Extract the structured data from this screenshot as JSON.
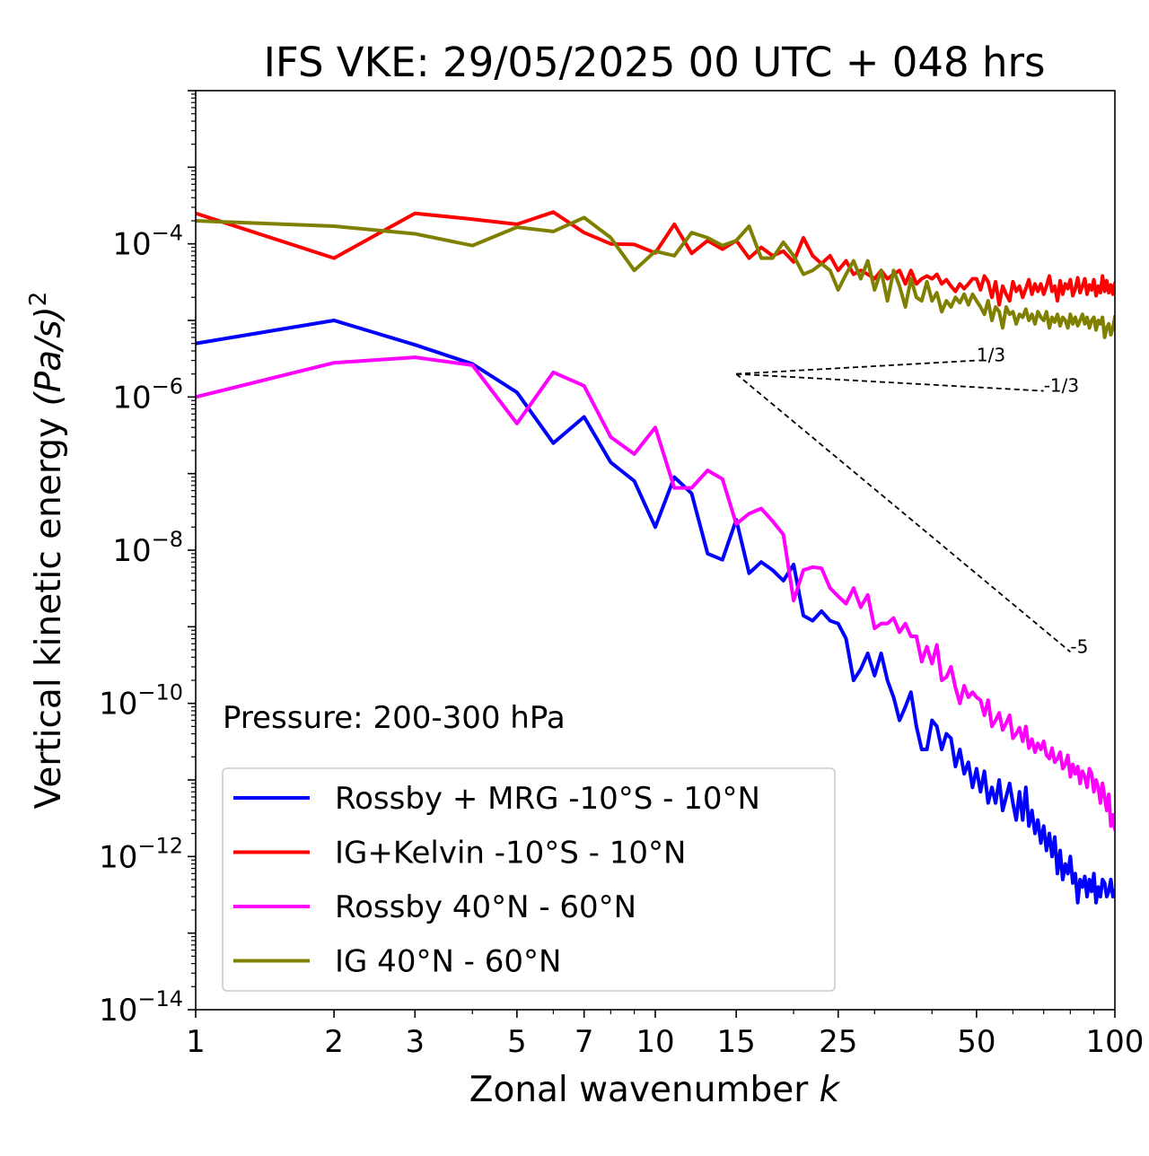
{
  "chart_data": {
    "type": "line",
    "title": "IFS VKE: 29/05/2025 00 UTC + 048 hrs",
    "xlabel": "Zonal wavenumber",
    "xlabel_var": "k",
    "ylabel_text": "Vertical kinetic energy",
    "ylabel_units": "(Pa/s)",
    "ylabel_exp": "2",
    "xscale": "log",
    "yscale": "log",
    "xlim": [
      1,
      100
    ],
    "ylim": [
      1e-14,
      0.01
    ],
    "xticks": [
      1,
      2,
      3,
      5,
      7,
      10,
      15,
      25,
      50,
      100
    ],
    "xtick_labels": [
      "1",
      "2",
      "3",
      "5",
      "7",
      "10",
      "15",
      "25",
      "50",
      "100"
    ],
    "yticks_exp": [
      -14,
      -12,
      -10,
      -8,
      -6,
      -4
    ],
    "ytick_base": "10",
    "ytick_exp_labels": [
      "−14",
      "−12",
      "−10",
      "−8",
      "−6",
      "−4"
    ],
    "annotation": "Pressure: 200-300 hPa",
    "legend_position": "lower-left",
    "slope_lines": [
      {
        "label": "1/3",
        "x0": 15,
        "y0": 2e-06,
        "x1": 50,
        "y1": 3e-06
      },
      {
        "label": "-1/3",
        "x0": 15,
        "y0": 2e-06,
        "x1": 70,
        "y1": 1.2e-06
      },
      {
        "label": "-5",
        "x0": 15,
        "y0": 2e-06,
        "x1": 80,
        "y1": 4.7e-10
      }
    ],
    "series": [
      {
        "name": "Rossby + MRG -10°S - 10°N",
        "color": "#0000ff",
        "x": [
          1,
          2,
          3,
          4,
          5,
          6,
          7,
          8,
          9,
          10,
          11,
          12,
          13,
          14,
          15,
          16,
          17,
          18,
          19,
          20,
          21,
          22,
          23,
          24,
          25,
          26,
          27,
          28,
          29,
          30,
          31,
          32,
          33,
          34,
          35,
          36,
          37,
          38,
          39,
          40,
          41,
          42,
          43,
          44,
          45,
          46,
          47,
          48,
          49,
          50,
          51,
          52,
          53,
          54,
          55,
          56,
          57,
          58,
          59,
          60,
          61,
          62,
          63,
          64,
          65,
          66,
          67,
          68,
          69,
          70,
          71,
          72,
          73,
          74,
          75,
          76,
          77,
          78,
          79,
          80,
          81,
          82,
          83,
          84,
          85,
          86,
          87,
          88,
          89,
          90,
          91,
          92,
          93,
          94,
          95,
          96,
          97,
          98,
          99,
          100
        ],
        "y": [
          5e-06,
          1e-05,
          4.8e-06,
          2.7e-06,
          1.15e-06,
          2.5e-07,
          5.5e-07,
          1.4e-07,
          8e-08,
          2e-08,
          9e-08,
          5.5e-08,
          9e-09,
          7.5e-09,
          2.5e-08,
          5e-09,
          7e-09,
          5.5e-09,
          4e-09,
          6.5e-09,
          1.4e-09,
          1.2e-09,
          1.6e-09,
          1.2e-09,
          1.1e-09,
          7e-10,
          2e-10,
          2.8e-10,
          4.5e-10,
          2.3e-10,
          4.5e-10,
          2e-10,
          1.2e-10,
          6e-11,
          9e-11,
          1.4e-10,
          5e-11,
          2.5e-11,
          2.5e-11,
          6e-11,
          5e-11,
          2.5e-11,
          4e-11,
          3.5e-11,
          1.5e-11,
          2.5e-11,
          1.2e-11,
          1.7e-11,
          8e-12,
          1.4e-11,
          7e-12,
          1.3e-11,
          5e-12,
          8e-12,
          5e-12,
          1e-11,
          4e-12,
          6e-12,
          9e-12,
          5e-12,
          3e-12,
          7e-12,
          3e-12,
          8e-12,
          2.5e-12,
          4e-12,
          2e-12,
          3e-12,
          1.5e-12,
          2.5e-12,
          1.2e-12,
          2e-12,
          1e-12,
          1.8e-12,
          6e-13,
          1.2e-12,
          5e-13,
          8e-13,
          6e-13,
          1e-12,
          4.5e-13,
          6e-13,
          2.5e-13,
          5e-13,
          4e-13,
          5.5e-13,
          3e-13,
          5e-13,
          3.5e-13,
          6e-13,
          2.5e-13,
          4e-13,
          3e-13,
          5e-13,
          4.5e-13,
          3e-13,
          3.5e-13,
          5e-13,
          3e-13,
          3.5e-13
        ]
      },
      {
        "name": "IG+Kelvin -10°S - 10°N",
        "color": "#ff0000",
        "x": [
          1,
          2,
          3,
          4,
          5,
          6,
          7,
          8,
          9,
          10,
          11,
          12,
          13,
          14,
          15,
          16,
          17,
          18,
          19,
          20,
          21,
          22,
          23,
          24,
          25,
          26,
          27,
          28,
          29,
          30,
          31,
          32,
          33,
          34,
          35,
          36,
          37,
          38,
          39,
          40,
          41,
          42,
          43,
          44,
          45,
          46,
          47,
          48,
          49,
          50,
          51,
          52,
          53,
          54,
          55,
          56,
          57,
          58,
          59,
          60,
          61,
          62,
          63,
          64,
          65,
          66,
          67,
          68,
          69,
          70,
          71,
          72,
          73,
          74,
          75,
          76,
          77,
          78,
          79,
          80,
          81,
          82,
          83,
          84,
          85,
          86,
          87,
          88,
          89,
          90,
          91,
          92,
          93,
          94,
          95,
          96,
          97,
          98,
          99,
          100
        ],
        "y": [
          0.00025,
          6.5e-05,
          0.00025,
          0.00021,
          0.00018,
          0.00026,
          0.00014,
          0.0001,
          9.8e-05,
          7.6e-05,
          0.00018,
          7.5e-05,
          0.00011,
          8.5e-05,
          0.00011,
          6.5e-05,
          9e-05,
          7e-05,
          8e-05,
          5.8e-05,
          0.00012,
          7e-05,
          5.5e-05,
          7e-05,
          4.5e-05,
          6e-05,
          4e-05,
          4.5e-05,
          4e-05,
          3.5e-05,
          4.5e-05,
          3.5e-05,
          4e-05,
          4.5e-05,
          3e-05,
          4.5e-05,
          3e-05,
          3.5e-05,
          3.8e-05,
          3.5e-05,
          4e-05,
          3e-05,
          3.4e-05,
          2.8e-05,
          2.4e-05,
          3e-05,
          2.6e-05,
          3e-05,
          3.5e-05,
          3.5e-05,
          2.5e-05,
          3.8e-05,
          3.2e-05,
          2e-05,
          3.2e-05,
          1.6e-05,
          2.8e-05,
          2.2e-05,
          1.8e-05,
          3.2e-05,
          2.4e-05,
          2.8e-05,
          2e-05,
          2.6e-05,
          3.4e-05,
          2.2e-05,
          3e-05,
          2.4e-05,
          3e-05,
          2.2e-05,
          2.8e-05,
          3.8e-05,
          2.4e-05,
          2.8e-05,
          1.8e-05,
          3.3e-05,
          2.2e-05,
          3e-05,
          2.6e-05,
          3.4e-05,
          2.1e-05,
          2.6e-05,
          3.6e-05,
          2.3e-05,
          2.8e-05,
          3.5e-05,
          2.2e-05,
          2.9e-05,
          2.5e-05,
          3.4e-05,
          2.1e-05,
          2.8e-05,
          2.3e-05,
          3.8e-05,
          2.4e-05,
          3.3e-05,
          2.3e-05,
          2.9e-05,
          2.2e-05,
          3e-05
        ]
      },
      {
        "name": "Rossby 40°N - 60°N",
        "color": "#ff00ff",
        "x": [
          1,
          2,
          3,
          4,
          5,
          6,
          7,
          8,
          9,
          10,
          11,
          12,
          13,
          14,
          15,
          16,
          17,
          18,
          19,
          20,
          21,
          22,
          23,
          24,
          25,
          26,
          27,
          28,
          29,
          30,
          31,
          32,
          33,
          34,
          35,
          36,
          37,
          38,
          39,
          40,
          41,
          42,
          43,
          44,
          45,
          46,
          47,
          48,
          49,
          50,
          51,
          52,
          53,
          54,
          55,
          56,
          57,
          58,
          59,
          60,
          61,
          62,
          63,
          64,
          65,
          66,
          67,
          68,
          69,
          70,
          71,
          72,
          73,
          74,
          75,
          76,
          77,
          78,
          79,
          80,
          81,
          82,
          83,
          84,
          85,
          86,
          87,
          88,
          89,
          90,
          91,
          92,
          93,
          94,
          95,
          96,
          97,
          98,
          99,
          100
        ],
        "y": [
          1e-06,
          2.8e-06,
          3.3e-06,
          2.6e-06,
          4.5e-07,
          2.1e-06,
          1.4e-06,
          3e-07,
          1.8e-07,
          4e-07,
          6.5e-08,
          6.5e-08,
          1.1e-07,
          8.5e-08,
          2.2e-08,
          3e-08,
          3.5e-08,
          2.4e-08,
          1.6e-08,
          2.2e-09,
          5.5e-09,
          6e-09,
          5.8e-09,
          3.2e-09,
          2.5e-09,
          2e-09,
          3.2e-09,
          1.8e-09,
          2.6e-09,
          9.5e-10,
          1.1e-09,
          1.1e-09,
          1.3e-09,
          8.5e-10,
          1.1e-09,
          7.5e-10,
          7.5e-10,
          3.5e-10,
          5.5e-10,
          3.3e-10,
          5.8e-10,
          2e-10,
          2.2e-10,
          3e-10,
          1.6e-10,
          1e-10,
          1.7e-10,
          1.2e-10,
          1.4e-10,
          1.2e-10,
          1.1e-10,
          7e-11,
          1.1e-10,
          5e-11,
          6e-11,
          7.5e-11,
          4.5e-11,
          5.5e-11,
          7e-11,
          3.5e-11,
          4e-11,
          4.8e-11,
          3.2e-11,
          5e-11,
          2.6e-11,
          3.4e-11,
          2.3e-11,
          3e-11,
          2.5e-11,
          3.2e-11,
          2.1e-11,
          1.9e-11,
          2.6e-11,
          1.7e-11,
          1.9e-11,
          2.3e-11,
          1.4e-11,
          1.6e-11,
          2.1e-11,
          1.1e-11,
          1.6e-11,
          1.2e-11,
          1.5e-11,
          9e-12,
          1.3e-11,
          1.1e-11,
          8e-12,
          1.4e-11,
          1.2e-11,
          7e-12,
          1e-11,
          8e-12,
          5e-12,
          9e-12,
          6e-12,
          4e-12,
          6.5e-12,
          2.5e-12,
          3.5e-12,
          2.3e-12
        ]
      },
      {
        "name": "IG 40°N - 60°N",
        "color": "#808000",
        "x": [
          1,
          2,
          3,
          4,
          5,
          6,
          7,
          8,
          9,
          10,
          11,
          12,
          13,
          14,
          15,
          16,
          17,
          18,
          19,
          20,
          21,
          22,
          23,
          24,
          25,
          26,
          27,
          28,
          29,
          30,
          31,
          32,
          33,
          34,
          35,
          36,
          37,
          38,
          39,
          40,
          41,
          42,
          43,
          44,
          45,
          46,
          47,
          48,
          49,
          50,
          51,
          52,
          53,
          54,
          55,
          56,
          57,
          58,
          59,
          60,
          61,
          62,
          63,
          64,
          65,
          66,
          67,
          68,
          69,
          70,
          71,
          72,
          73,
          74,
          75,
          76,
          77,
          78,
          79,
          80,
          81,
          82,
          83,
          84,
          85,
          86,
          87,
          88,
          89,
          90,
          91,
          92,
          93,
          94,
          95,
          96,
          97,
          98,
          99,
          100
        ],
        "y": [
          0.0002,
          0.00017,
          0.000135,
          9.5e-05,
          0.000165,
          0.000145,
          0.00022,
          0.00012,
          4.5e-05,
          8e-05,
          7e-05,
          0.00014,
          0.00012,
          9.5e-05,
          0.00011,
          0.00017,
          6.5e-05,
          6.5e-05,
          0.000105,
          7e-05,
          4e-05,
          4.5e-05,
          5.5e-05,
          4.5e-05,
          2.5e-05,
          4e-05,
          6e-05,
          3.5e-05,
          6e-05,
          2.5e-05,
          4.5e-05,
          1.8e-05,
          4.5e-05,
          2.8e-05,
          1.5e-05,
          3.5e-05,
          2e-05,
          1.8e-05,
          3.2e-05,
          1.8e-05,
          2.3e-05,
          1.3e-05,
          1.8e-05,
          1.5e-05,
          2e-05,
          1.7e-05,
          2.2e-05,
          1.6e-05,
          2.2e-05,
          1.8e-05,
          1.5e-05,
          1.2e-05,
          1.8e-05,
          1e-05,
          1.5e-05,
          1.3e-05,
          8e-06,
          1.5e-05,
          1.2e-05,
          1.3e-05,
          9e-06,
          1.2e-05,
          1.1e-05,
          1.4e-05,
          1e-05,
          1.2e-05,
          9e-06,
          1.3e-05,
          1.1e-05,
          1e-05,
          1.3e-05,
          8e-06,
          1.1e-05,
          9.5e-06,
          1.2e-05,
          8.5e-06,
          1.1e-05,
          1e-05,
          8e-06,
          1.2e-05,
          9e-06,
          1.1e-05,
          8.5e-06,
          1e-05,
          1.2e-05,
          9e-06,
          1.1e-05,
          8e-06,
          1e-05,
          1.1e-05,
          7.5e-06,
          1e-05,
          9e-06,
          1.1e-05,
          6e-06,
          8e-06,
          9e-06,
          6.5e-06,
          8e-06,
          1.1e-05
        ]
      }
    ]
  }
}
